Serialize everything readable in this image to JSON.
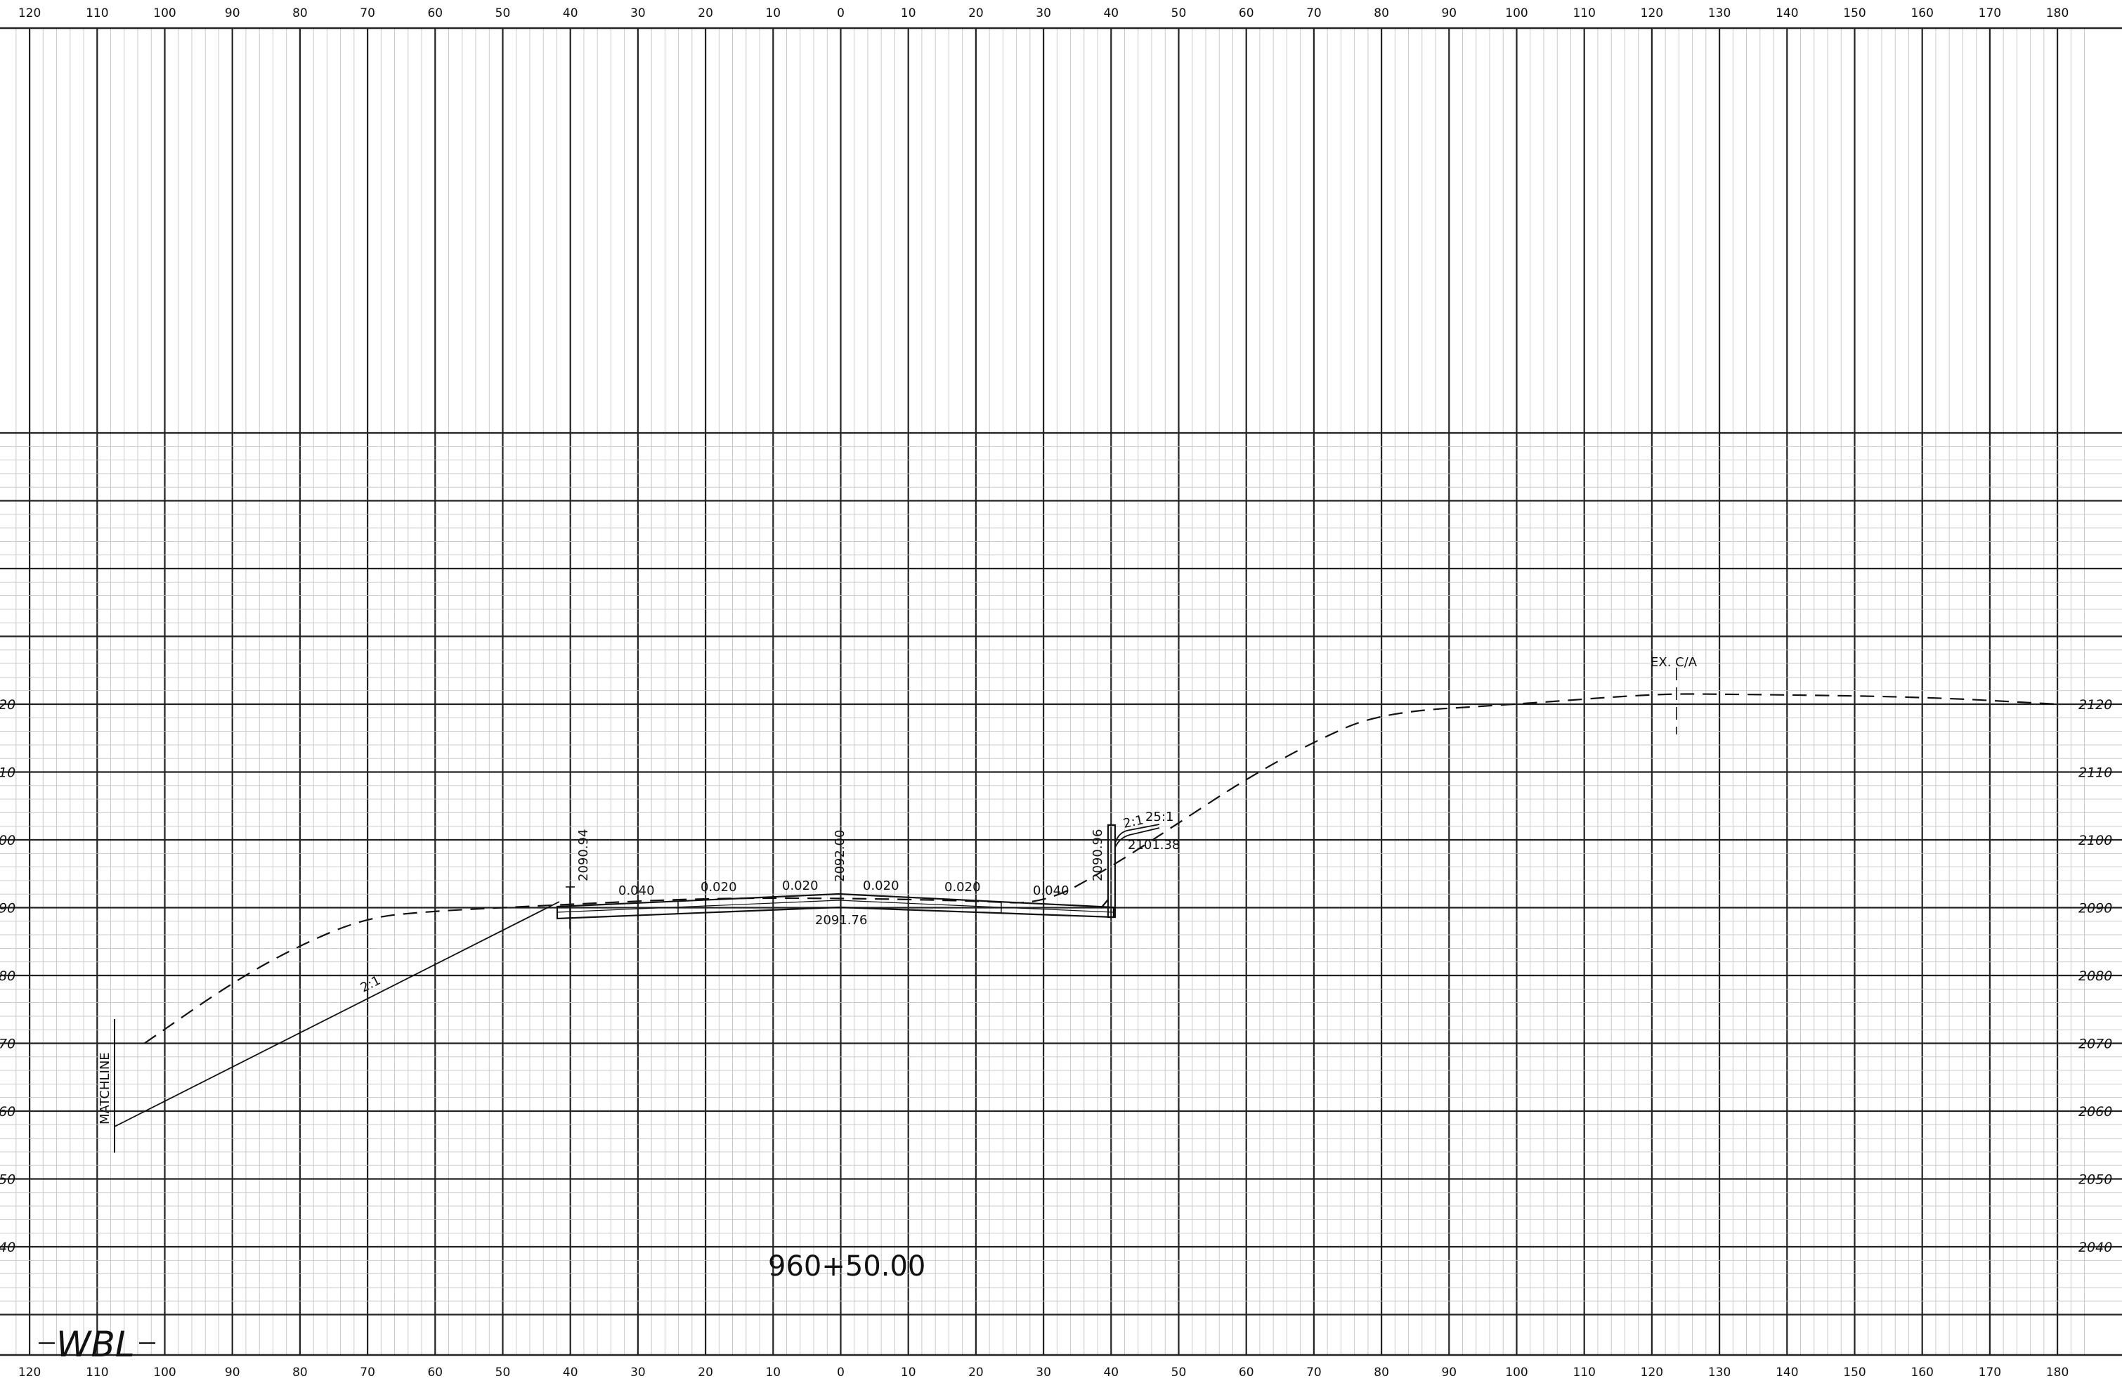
{
  "drawing": {
    "station_label": "960+50.00",
    "alignment_label": "WBL",
    "matchline_label": "MATCHLINE"
  },
  "offset_labels": [
    "120",
    "110",
    "100",
    "90",
    "80",
    "70",
    "60",
    "50",
    "40",
    "30",
    "20",
    "10",
    "0",
    "10",
    "20",
    "30",
    "40",
    "50",
    "60",
    "70",
    "80",
    "90",
    "100",
    "110",
    "120",
    "130",
    "140",
    "150",
    "160",
    "170",
    "180"
  ],
  "elevation_labels": {
    "values": [
      2040,
      2050,
      2060,
      2070,
      2080,
      2090,
      2100,
      2110,
      2120
    ],
    "left": [
      "40",
      "50",
      "60",
      "70",
      "80",
      "90",
      "00",
      "10",
      "20"
    ],
    "right": [
      "2040",
      "2050",
      "2060",
      "2070",
      "2080",
      "2090",
      "2100",
      "2110",
      "2120"
    ]
  },
  "annotations": {
    "ex_ca": "EX. C/A",
    "elev_left": "2090.94",
    "elev_center_top": "2092.00",
    "elev_center_bottom": "2091.76",
    "elev_right": "2090.96",
    "elev_right_slope": "2101.38",
    "slope_left": "2:1",
    "slope_right_a": "2:1",
    "slope_right_b": "25:1",
    "cross_slopes": [
      "0.040",
      "0.020",
      "0.020",
      "0.020",
      "0.020",
      "0.040"
    ]
  },
  "profiles": {
    "existing_ground": [
      [
        -103,
        2070
      ],
      [
        -90,
        2079
      ],
      [
        -80,
        2084.5
      ],
      [
        -70,
        2088.6
      ],
      [
        -60,
        2089.5
      ],
      [
        -50,
        2090
      ],
      [
        -40,
        2090.5
      ],
      [
        -20,
        2091.4
      ],
      [
        0,
        2091.4
      ],
      [
        20,
        2091
      ],
      [
        30,
        2090.5
      ],
      [
        40,
        2096
      ],
      [
        50,
        2102.5
      ],
      [
        60,
        2109
      ],
      [
        70,
        2114.5
      ],
      [
        80,
        2118.8
      ],
      [
        100,
        2120
      ],
      [
        120,
        2121.5
      ],
      [
        130,
        2121.5
      ],
      [
        160,
        2121.1
      ],
      [
        180,
        2120
      ]
    ],
    "proposed_section": [
      [
        -103,
        2058
      ],
      [
        -40,
        2090.2
      ],
      [
        -38,
        2091.1
      ],
      [
        0,
        2091.9
      ],
      [
        38,
        2091.1
      ],
      [
        40,
        2090.3
      ],
      [
        40,
        2101.2
      ],
      [
        47,
        2101.8
      ]
    ]
  }
}
